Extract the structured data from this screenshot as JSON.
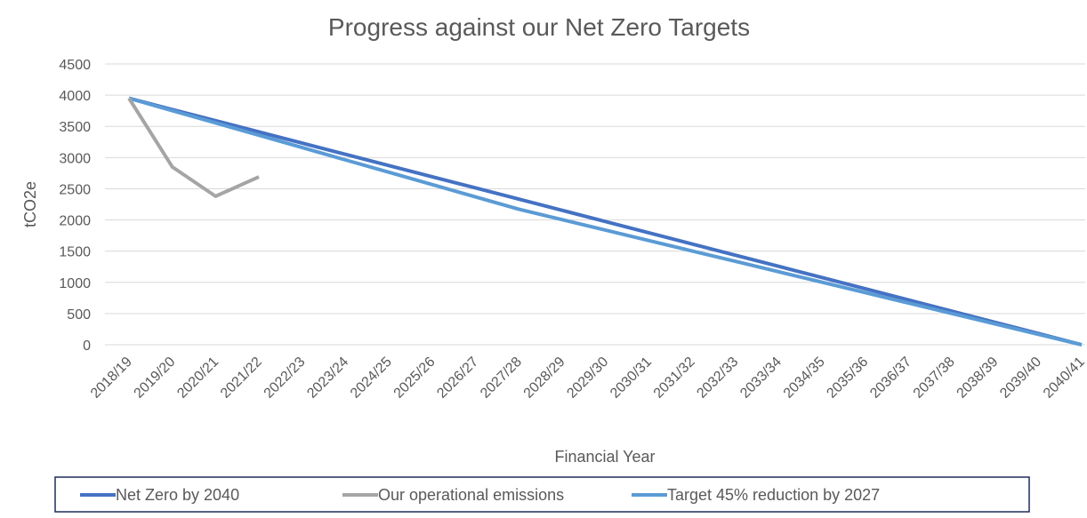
{
  "chart_data": {
    "type": "line",
    "title": "Progress against our Net Zero Targets",
    "x_label": "Financial Year",
    "y_label": "tCO2e",
    "categories": [
      "2018/19",
      "2019/20",
      "2020/21",
      "2021/22",
      "2022/23",
      "2023/24",
      "2024/25",
      "2025/26",
      "2026/27",
      "2027/28",
      "2028/29",
      "2029/30",
      "2030/31",
      "2031/32",
      "2032/33",
      "2033/34",
      "2034/35",
      "2035/36",
      "2036/37",
      "2037/38",
      "2038/39",
      "2039/40",
      "2040/41"
    ],
    "series": [
      {
        "name": "Net Zero by 2040",
        "color": "#4472c4",
        "values": [
          3950,
          3770,
          3591,
          3411,
          3232,
          3052,
          2873,
          2693,
          2514,
          2334,
          2155,
          1975,
          1795,
          1616,
          1436,
          1257,
          1077,
          898,
          718,
          539,
          359,
          180,
          0
        ]
      },
      {
        "name": "Our operational emissions",
        "color": "#a5a5a5",
        "values": [
          3950,
          2850,
          2380,
          2690,
          null,
          null,
          null,
          null,
          null,
          null,
          null,
          null,
          null,
          null,
          null,
          null,
          null,
          null,
          null,
          null,
          null,
          null,
          null
        ]
      },
      {
        "name": "Target 45% reduction by 2027",
        "color": "#5b9bd5",
        "values": [
          3950,
          3752,
          3555,
          3358,
          3160,
          2962,
          2765,
          2568,
          2370,
          2172,
          2005,
          1838,
          1671,
          1504,
          1337,
          1170,
          1003,
          836,
          668,
          501,
          334,
          167,
          0
        ]
      }
    ],
    "ylim": [
      0,
      4500
    ],
    "yticks": [
      0,
      500,
      1000,
      1500,
      2000,
      2500,
      3000,
      3500,
      4000,
      4500
    ],
    "grid": true,
    "legend": "bottom"
  }
}
